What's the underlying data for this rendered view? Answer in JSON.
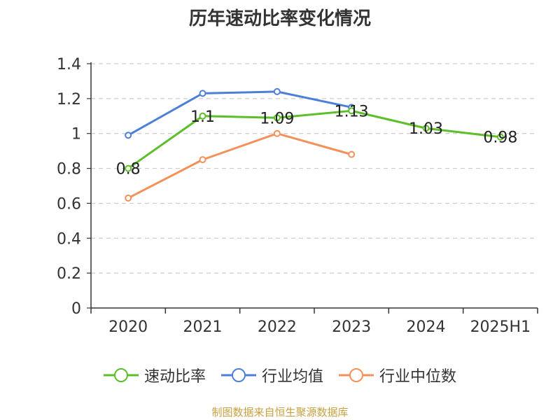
{
  "chart_data": {
    "type": "line",
    "title": "历年速动比率变化情况",
    "categories": [
      "2020",
      "2021",
      "2022",
      "2023",
      "2024",
      "2025H1"
    ],
    "ylim": [
      0,
      1.4
    ],
    "yticks": [
      "0",
      "0.2",
      "0.4",
      "0.6",
      "0.8",
      "1",
      "1.2",
      "1.4"
    ],
    "grid": true,
    "legend_position": "bottom",
    "series": [
      {
        "name": "速动比率",
        "color": "#5cbf2a",
        "values": [
          0.8,
          1.1,
          1.09,
          1.13,
          1.03,
          0.98
        ],
        "labels": [
          "0.8",
          "1.1",
          "1.09",
          "1.13",
          "1.03",
          "0.98"
        ]
      },
      {
        "name": "行业均值",
        "color": "#4e7fd8",
        "values": [
          0.99,
          1.23,
          1.24,
          1.15,
          null,
          null
        ]
      },
      {
        "name": "行业中位数",
        "color": "#f4915a",
        "values": [
          0.63,
          0.85,
          1.0,
          0.88,
          null,
          null
        ]
      }
    ]
  },
  "footer": {
    "source": "制图数据来自恒生聚源数据库"
  }
}
